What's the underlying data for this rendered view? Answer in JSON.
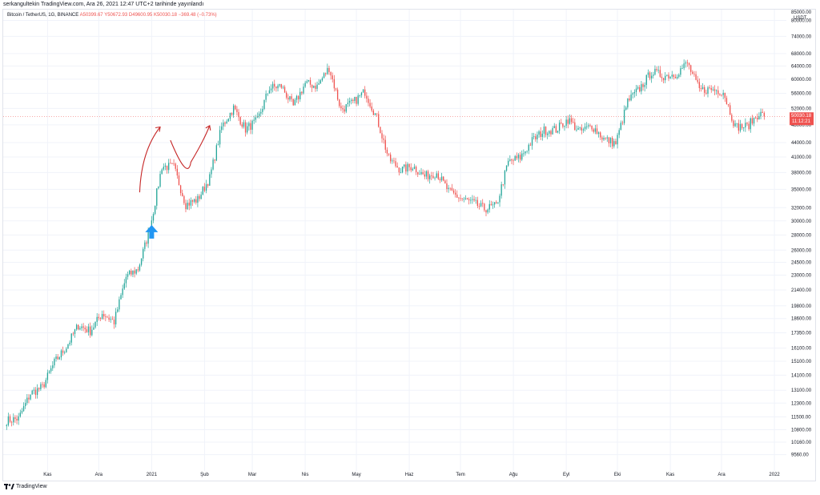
{
  "header": {
    "publisher": "serkangultekin TradingView.com, Ara 26, 2021 12:47 UTC+2 tarihinde yayınlandı"
  },
  "legend": {
    "symbol": "Bitcoin / TetherUS, 1G, BINANCE",
    "open": "A50399.67",
    "high": "Y50672.93",
    "low": "D49600.95",
    "close": "K50030.18",
    "change": "−369.48 (−0.73%)"
  },
  "price_axis": {
    "currency": "USDT",
    "top_label": "85000.00",
    "labels": [
      "80000.00",
      "74000.00",
      "68000.00",
      "64000.00",
      "60000.00",
      "56000.00",
      "52000.00",
      "48000.00",
      "44000.00",
      "41000.00",
      "38000.00",
      "35000.00",
      "32000.00",
      "30000.00",
      "28000.00",
      "26000.00",
      "24500.00",
      "23000.00",
      "21400.00",
      "19800.00",
      "18600.00",
      "17350.00",
      "16100.00",
      "15100.00",
      "14100.00",
      "13100.00",
      "12300.00",
      "11500.00",
      "10800.00",
      "10160.00",
      "9560.00"
    ],
    "last_price": "50030.18",
    "countdown": "11:12:21"
  },
  "time_axis": {
    "labels": [
      "Kas",
      "Ara",
      "2021",
      "Şub",
      "Mar",
      "Nis",
      "May",
      "Haz",
      "Tem",
      "Ağu",
      "Eyl",
      "Eki",
      "Kas",
      "Ara",
      "2022"
    ]
  },
  "footer": {
    "brand": "TradingView"
  },
  "colors": {
    "up": "#26a69a",
    "down": "#ef5350",
    "annotation": "#c62828",
    "arrow": "#2196f3",
    "grid": "#f0f3fa"
  },
  "chart_data": {
    "type": "candlestick",
    "symbol": "Bitcoin / TetherUS",
    "interval": "1G",
    "exchange": "BINANCE",
    "scale": "log",
    "ylim": [
      9000,
      86000
    ],
    "x_range": [
      "2020-10-06",
      "2022-01-08"
    ],
    "grid": true,
    "last_price": 50030.18,
    "series_close": [
      [
        "2020-10-08",
        11300
      ],
      [
        "2020-10-15",
        11400
      ],
      [
        "2020-10-22",
        12900
      ],
      [
        "2020-10-29",
        13300
      ],
      [
        "2020-11-05",
        15000
      ],
      [
        "2020-11-12",
        16200
      ],
      [
        "2020-11-19",
        18000
      ],
      [
        "2020-11-26",
        17500
      ],
      [
        "2020-12-03",
        19100
      ],
      [
        "2020-12-10",
        18300
      ],
      [
        "2020-12-17",
        22800
      ],
      [
        "2020-12-24",
        23700
      ],
      [
        "2020-12-31",
        28900
      ],
      [
        "2021-01-07",
        39200
      ],
      [
        "2021-01-14",
        39000
      ],
      [
        "2021-01-21",
        32500
      ],
      [
        "2021-01-28",
        33300
      ],
      [
        "2021-02-04",
        37000
      ],
      [
        "2021-02-11",
        47500
      ],
      [
        "2021-02-18",
        52100
      ],
      [
        "2021-02-25",
        47000
      ],
      [
        "2021-03-04",
        49000
      ],
      [
        "2021-03-11",
        57500
      ],
      [
        "2021-03-18",
        58000
      ],
      [
        "2021-03-25",
        52500
      ],
      [
        "2021-04-01",
        58800
      ],
      [
        "2021-04-08",
        58000
      ],
      [
        "2021-04-15",
        63500
      ],
      [
        "2021-04-22",
        51700
      ],
      [
        "2021-04-29",
        53500
      ],
      [
        "2021-05-06",
        56500
      ],
      [
        "2021-05-13",
        49600
      ],
      [
        "2021-05-20",
        40600
      ],
      [
        "2021-05-27",
        38500
      ],
      [
        "2021-06-03",
        39200
      ],
      [
        "2021-06-10",
        37300
      ],
      [
        "2021-06-17",
        38000
      ],
      [
        "2021-06-24",
        34700
      ],
      [
        "2021-07-01",
        33500
      ],
      [
        "2021-07-08",
        32800
      ],
      [
        "2021-07-15",
        31800
      ],
      [
        "2021-07-22",
        32300
      ],
      [
        "2021-07-29",
        40000
      ],
      [
        "2021-08-05",
        40900
      ],
      [
        "2021-08-12",
        44400
      ],
      [
        "2021-08-19",
        46700
      ],
      [
        "2021-08-26",
        46900
      ],
      [
        "2021-09-02",
        49300
      ],
      [
        "2021-09-09",
        46400
      ],
      [
        "2021-09-16",
        47800
      ],
      [
        "2021-09-23",
        44800
      ],
      [
        "2021-09-30",
        43800
      ],
      [
        "2021-10-07",
        53800
      ],
      [
        "2021-10-14",
        57300
      ],
      [
        "2021-10-21",
        62200
      ],
      [
        "2021-10-28",
        61000
      ],
      [
        "2021-11-04",
        61500
      ],
      [
        "2021-11-11",
        64900
      ],
      [
        "2021-11-18",
        56900
      ],
      [
        "2021-11-25",
        57100
      ],
      [
        "2021-12-02",
        56500
      ],
      [
        "2021-12-09",
        47600
      ],
      [
        "2021-12-16",
        47600
      ],
      [
        "2021-12-23",
        50800
      ],
      [
        "2021-12-26",
        50030.18
      ]
    ],
    "annotations": [
      {
        "type": "arrow",
        "color": "#2196f3",
        "date": "2021-01-01",
        "price": 28500
      },
      {
        "type": "curve",
        "color": "#c62828",
        "points": [
          [
            "2020-12-25",
            34500
          ],
          [
            "2021-01-06",
            47500
          ],
          [
            "2021-01-12",
            44500
          ],
          [
            "2021-01-24",
            40000
          ],
          [
            "2021-02-04",
            47800
          ]
        ]
      }
    ]
  }
}
